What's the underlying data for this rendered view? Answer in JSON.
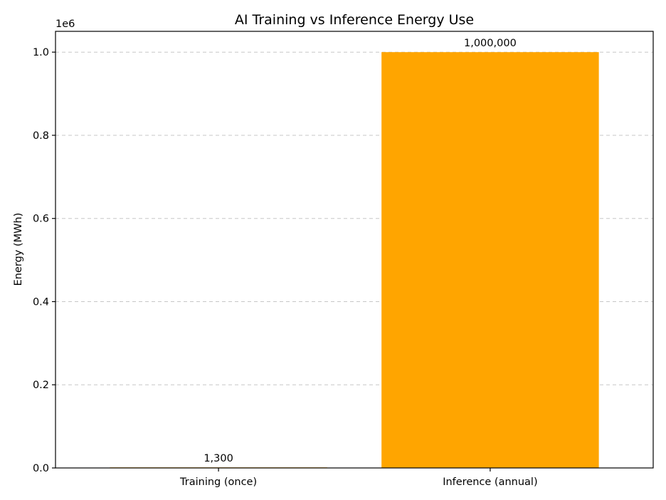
{
  "chart_data": {
    "type": "bar",
    "title": "AI Training vs Inference Energy Use",
    "xlabel": "",
    "ylabel": "Energy (MWh)",
    "categories": [
      "Training (once)",
      "Inference (annual)"
    ],
    "values": [
      1300,
      1000000
    ],
    "data_labels": [
      "1,300",
      "1,000,000"
    ],
    "bar_colors": [
      "#FFA500",
      "#FFA500"
    ],
    "ylim": [
      0,
      1050000
    ],
    "yticks": [
      0,
      200000,
      400000,
      600000,
      800000,
      1000000
    ],
    "ytick_labels": [
      "0.0",
      "0.2",
      "0.4",
      "0.6",
      "0.8",
      "1.0"
    ],
    "y_offset_label": "1e6",
    "grid": "y-dashed",
    "legend": "none"
  }
}
